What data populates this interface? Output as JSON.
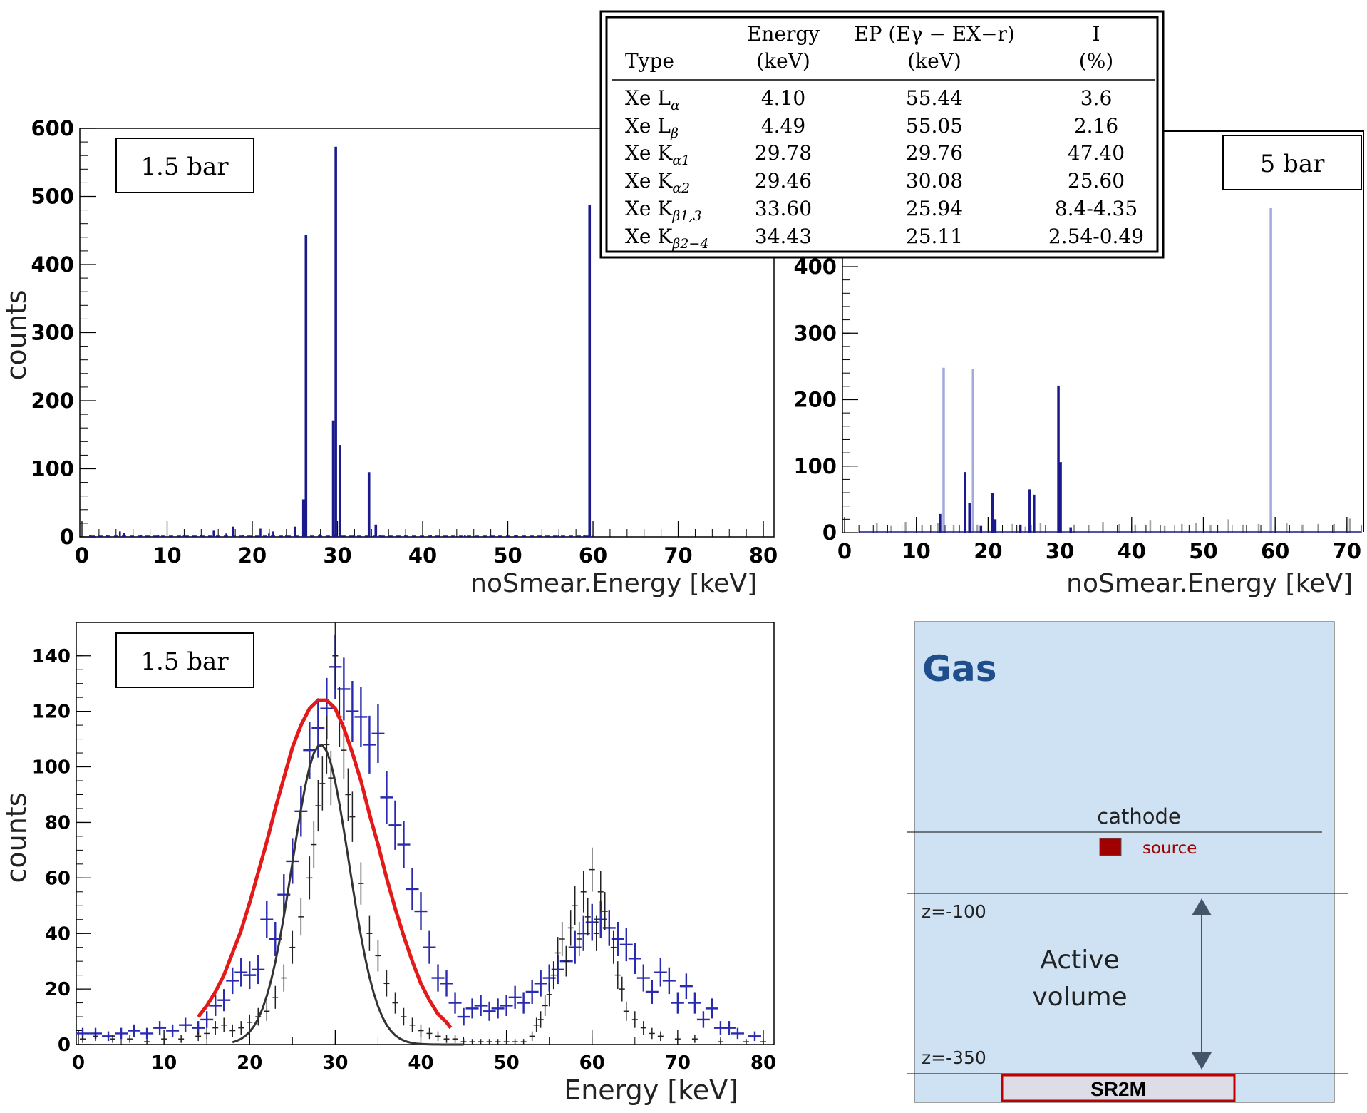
{
  "colors": {
    "navy": "#1a1a8c",
    "histLight": "#8f95d6",
    "black": "#000000",
    "red": "#e31a1a",
    "blue": "#2a2ab0",
    "grayCross": "#999999",
    "gasFill": "#cfe2f3",
    "gasTitle": "#1f4e8c",
    "source": "#a00000",
    "arrow": "#44546a",
    "sr2mFill": "#dcdde6",
    "sr2mBorder": "#c00000"
  },
  "table": {
    "headers": [
      {
        "line1": "",
        "line2": "Type"
      },
      {
        "line1": "Energy",
        "line2": "(keV)"
      },
      {
        "line1": "EP (Eγ − EX−r)",
        "line2": "(keV)"
      },
      {
        "line1": "I",
        "line2": "(%)"
      }
    ],
    "rows": [
      {
        "prefix": "Xe L",
        "sub": "α",
        "energy": "4.10",
        "ep": "55.44",
        "i": "3.6"
      },
      {
        "prefix": "Xe L",
        "sub": "β",
        "energy": "4.49",
        "ep": "55.05",
        "i": "2.16"
      },
      {
        "prefix": "Xe K",
        "sub": "α1",
        "energy": "29.78",
        "ep": "29.76",
        "i": "47.40"
      },
      {
        "prefix": "Xe K",
        "sub": "α2",
        "energy": "29.46",
        "ep": "30.08",
        "i": "25.60"
      },
      {
        "prefix": "Xe K",
        "sub": "β1,3",
        "energy": "33.60",
        "ep": "25.94",
        "i": "8.4-4.35"
      },
      {
        "prefix": "Xe K",
        "sub": "β2−4",
        "energy": "34.43",
        "ep": "25.11",
        "i": "2.54-0.49"
      }
    ]
  },
  "diagram": {
    "title": "Gas",
    "cathode": "cathode",
    "source": "source",
    "z1": "z=-100",
    "z2": "z=-350",
    "active_line1": "Active",
    "active_line2": "volume",
    "sr2m": "SR2M"
  },
  "chart_data": [
    {
      "type": "bar",
      "panel": "top-left",
      "label_box": "1.5 bar",
      "xlabel": "noSmear.Energy [keV]",
      "ylabel": "counts",
      "xlim": [
        0,
        81
      ],
      "ylim": [
        0,
        600
      ],
      "xticks": [
        0,
        10,
        20,
        30,
        40,
        50,
        60,
        70,
        80
      ],
      "yticks": [
        0,
        100,
        200,
        300,
        400,
        500,
        600
      ],
      "series": [
        {
          "x": [
            25.0,
            26.0,
            26.3,
            29.5,
            29.8,
            30.3,
            33.7,
            34.5,
            59.6
          ],
          "values": [
            15,
            55,
            443,
            171,
            573,
            135,
            95,
            18,
            488
          ]
        },
        {
          "x": [
            1,
            3,
            4.5,
            5,
            7,
            9,
            12,
            14,
            15.5,
            17,
            17.8,
            19,
            21,
            22,
            22.5,
            24,
            28,
            32,
            35,
            38,
            41,
            45,
            48,
            51,
            56,
            59
          ],
          "values": [
            3,
            2,
            8,
            6,
            2,
            3,
            2,
            3,
            9,
            5,
            15,
            3,
            12,
            5,
            8,
            2,
            4,
            3,
            2,
            2,
            3,
            2,
            2,
            2,
            2,
            2
          ]
        }
      ]
    },
    {
      "type": "bar",
      "panel": "top-right",
      "label_box": "5 bar",
      "xlabel": "noSmear.Energy [keV]",
      "ylabel": "",
      "xlim": [
        0,
        72
      ],
      "ylim": [
        0,
        600
      ],
      "xticks": [
        0,
        10,
        20,
        30,
        40,
        50,
        60,
        70
      ],
      "yticks": [
        0,
        100,
        200,
        300,
        400
      ],
      "series": [
        {
          "name": "light",
          "x": [
            13.8,
            17.9,
            59.4
          ],
          "values": [
            248,
            246,
            488
          ]
        },
        {
          "name": "dark",
          "x": [
            16.8,
            17.4,
            20.6,
            21.0,
            25.8,
            26.4,
            29.8,
            30.1,
            13.3,
            19.0,
            24.5,
            31.5
          ],
          "values": [
            91,
            45,
            60,
            20,
            65,
            57,
            221,
            106,
            28,
            10,
            12,
            8
          ]
        },
        {
          "name": "gray",
          "x": [
            4.5,
            6.5,
            8.5,
            10.8,
            13,
            15.2,
            18.5,
            21,
            23.4,
            25.2,
            27.3,
            32,
            34,
            36,
            38.3,
            40.5,
            42.6,
            44.6,
            47,
            49,
            51,
            53.5,
            55.5,
            57.7,
            61.6,
            63.8,
            66,
            68.2,
            70.4
          ],
          "values": [
            14,
            10,
            16,
            11,
            15,
            12,
            12,
            10,
            13,
            9,
            14,
            12,
            11,
            16,
            13,
            12,
            18,
            10,
            13,
            15,
            11,
            20,
            12,
            13,
            14,
            12,
            13,
            13,
            21
          ]
        }
      ]
    },
    {
      "type": "scatter",
      "panel": "bottom-left",
      "label_box": "1.5 bar",
      "xlabel": "Energy [keV]",
      "ylabel": "counts",
      "xlim": [
        0,
        81
      ],
      "ylim": [
        0,
        152
      ],
      "xticks": [
        0,
        10,
        20,
        30,
        40,
        50,
        60,
        70,
        80
      ],
      "yticks": [
        0,
        20,
        40,
        60,
        80,
        100,
        120,
        140
      ],
      "series": [
        {
          "name": "blue",
          "type": "errorbar",
          "x": [
            0.5,
            2,
            3.5,
            5,
            6.5,
            8,
            9.5,
            11,
            12.5,
            14,
            15,
            16,
            17,
            18,
            19,
            20,
            21,
            22,
            23,
            24,
            25,
            26,
            27,
            28,
            29,
            30,
            31,
            32,
            33,
            34,
            35,
            36,
            37,
            38,
            39,
            40,
            41,
            42,
            43,
            44,
            45,
            46,
            47,
            48,
            49,
            50,
            51,
            52,
            53,
            54,
            55,
            56,
            57,
            58,
            59,
            60,
            61,
            62,
            63,
            64,
            65,
            66,
            67,
            68,
            69,
            70,
            71,
            72,
            73,
            74,
            75,
            76,
            77,
            79
          ],
          "values": [
            4,
            4,
            3,
            4,
            5,
            4,
            6,
            5,
            7,
            6,
            9,
            14,
            16,
            23,
            26,
            25,
            27,
            45,
            38,
            54,
            66,
            84,
            106,
            114,
            121,
            136,
            128,
            120,
            118,
            108,
            112,
            89,
            79,
            72,
            56,
            48,
            35,
            24,
            22,
            15,
            10,
            13,
            14,
            12,
            13,
            14,
            17,
            15,
            19,
            22,
            24,
            27,
            30,
            35,
            40,
            44,
            45,
            42,
            38,
            36,
            31,
            24,
            19,
            26,
            23,
            15,
            21,
            15,
            9,
            13,
            6,
            6,
            4,
            3
          ]
        },
        {
          "name": "black",
          "type": "errorbar",
          "x": [
            0.5,
            2,
            4,
            6,
            8,
            10,
            12,
            14,
            15,
            16,
            17,
            18,
            19,
            20,
            21,
            22,
            23,
            24,
            25,
            26,
            27,
            27.5,
            28,
            28.5,
            29,
            29.5,
            30,
            30.5,
            31,
            31.5,
            32,
            33,
            34,
            35,
            36,
            37,
            38,
            39,
            40,
            41,
            42,
            43,
            44,
            45,
            46,
            47,
            48,
            49,
            50,
            51,
            52,
            53,
            53.5,
            54,
            54.5,
            55,
            55.5,
            56,
            56.5,
            57,
            57.5,
            58,
            58.5,
            59,
            59.5,
            60,
            60.5,
            61,
            61.5,
            62,
            62.5,
            63,
            63.5,
            64,
            65,
            66,
            67,
            68,
            70,
            72,
            75,
            78,
            80
          ],
          "values": [
            2,
            3,
            2,
            2,
            1,
            2,
            2,
            3,
            4,
            6,
            7,
            5,
            6,
            8,
            10,
            12,
            17,
            24,
            35,
            46,
            60,
            72,
            86,
            94,
            108,
            96,
            140,
            118,
            106,
            90,
            82,
            58,
            40,
            32,
            22,
            15,
            10,
            7,
            5,
            4,
            3,
            2,
            2,
            1,
            1,
            1,
            1,
            1,
            1,
            1,
            1,
            3,
            7,
            9,
            14,
            18,
            25,
            33,
            38,
            30,
            42,
            50,
            38,
            55,
            46,
            63,
            40,
            55,
            48,
            42,
            35,
            25,
            20,
            12,
            9,
            6,
            4,
            3,
            2,
            2,
            1,
            1,
            1
          ]
        },
        {
          "name": "gaussian fit",
          "type": "line",
          "x": [
            14,
            15,
            16,
            17,
            18,
            19,
            20,
            21,
            22,
            23,
            24,
            25,
            26,
            27,
            28,
            29,
            30,
            31,
            32,
            33,
            34,
            35,
            36,
            37,
            38,
            39,
            40,
            41,
            42,
            43,
            43.5
          ],
          "values": [
            10,
            14,
            19,
            25,
            33,
            41,
            51,
            62,
            73,
            85,
            96,
            107,
            115,
            121,
            124,
            124,
            121,
            114,
            105,
            95,
            83,
            72,
            60,
            49,
            39,
            30,
            22,
            16,
            11,
            8,
            6
          ]
        }
      ]
    }
  ]
}
